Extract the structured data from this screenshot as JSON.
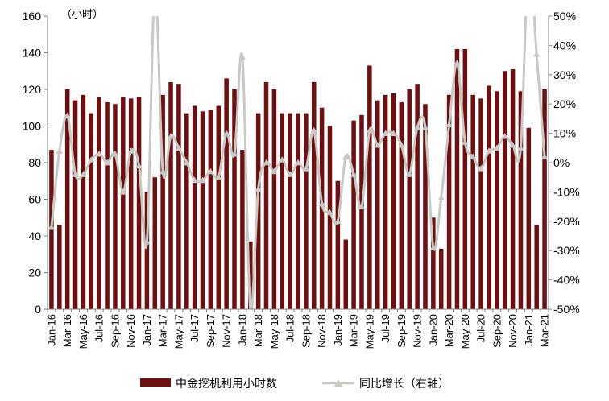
{
  "chart_data": {
    "type": "bar+line",
    "unit_label": "（小时）",
    "categories": [
      "Jan-16",
      "Feb-16",
      "Mar-16",
      "Apr-16",
      "May-16",
      "Jun-16",
      "Jul-16",
      "Aug-16",
      "Sep-16",
      "Oct-16",
      "Nov-16",
      "Dec-16",
      "Jan-17",
      "Feb-17",
      "Mar-17",
      "Apr-17",
      "May-17",
      "Jun-17",
      "Jul-17",
      "Aug-17",
      "Sep-17",
      "Oct-17",
      "Nov-17",
      "Dec-17",
      "Jan-18",
      "Feb-18",
      "Mar-18",
      "Apr-18",
      "May-18",
      "Jun-18",
      "Jul-18",
      "Aug-18",
      "Sep-18",
      "Oct-18",
      "Nov-18",
      "Dec-18",
      "Jan-19",
      "Feb-19",
      "Mar-19",
      "Apr-19",
      "May-19",
      "Jun-19",
      "Jul-19",
      "Aug-19",
      "Sep-19",
      "Oct-19",
      "Nov-19",
      "Dec-19",
      "Jan-20",
      "Feb-20",
      "Mar-20",
      "Apr-20",
      "May-20",
      "Jun-20",
      "Jul-20",
      "Aug-20",
      "Sep-20",
      "Oct-20",
      "Nov-20",
      "Dec-20",
      "Jan-21",
      "Feb-21",
      "Mar-21"
    ],
    "x_tick_labels": [
      "Jan-16",
      "Mar-16",
      "May-16",
      "Jul-16",
      "Sep-16",
      "Nov-16",
      "Jan-17",
      "Mar-17",
      "May-17",
      "Jul-17",
      "Sep-17",
      "Nov-17",
      "Jan-18",
      "Mar-18",
      "May-18",
      "Jul-18",
      "Sep-18",
      "Nov-18",
      "Jan-19",
      "Mar-19",
      "May-19",
      "Jul-19",
      "Sep-19",
      "Nov-19",
      "Jan-20",
      "Mar-20",
      "May-20",
      "Jul-20",
      "Sep-20",
      "Nov-20",
      "Jan-21",
      "Mar-21"
    ],
    "series": [
      {
        "name": "中金挖机利用小时数",
        "kind": "bar",
        "axis": "left",
        "color": "#6e1010",
        "values": [
          87,
          46,
          120,
          114,
          117,
          107,
          116,
          113,
          112,
          116,
          115,
          116,
          64,
          72,
          117,
          124,
          123,
          107,
          111,
          108,
          109,
          111,
          126,
          120,
          87,
          37,
          107,
          124,
          120,
          107,
          107,
          107,
          107,
          124,
          110,
          100,
          70,
          38,
          103,
          106,
          133,
          114,
          117,
          118,
          113,
          120,
          123,
          112,
          50,
          33,
          117,
          142,
          142,
          117,
          115,
          122,
          119,
          130,
          131,
          119,
          99,
          46,
          120
        ]
      },
      {
        "name": "同比增长（右轴）",
        "kind": "line",
        "axis": "right",
        "color": "#c8c8c4",
        "values": [
          -22,
          4,
          16,
          -4,
          -4,
          1,
          3,
          0,
          3,
          -10,
          4,
          -1,
          -27,
          60,
          -3,
          9,
          5,
          0,
          -6,
          -6,
          -3,
          -5,
          10,
          3,
          36,
          -50,
          -9,
          0,
          -3,
          1,
          -4,
          0,
          -2,
          11,
          -14,
          -17,
          -20,
          2,
          -4,
          -15,
          11,
          6,
          10,
          10,
          6,
          -4,
          12,
          12,
          -29,
          -12,
          13,
          34,
          7,
          2,
          -2,
          4,
          5,
          9,
          6,
          5,
          70,
          37,
          2
        ]
      }
    ],
    "y_left": {
      "min": 0,
      "max": 160,
      "ticks": [
        0,
        20,
        40,
        60,
        80,
        100,
        120,
        140,
        160
      ]
    },
    "y_right": {
      "min": -50,
      "max": 50,
      "ticks": [
        "-50%",
        "-40%",
        "-30%",
        "-20%",
        "-10%",
        "0%",
        "10%",
        "20%",
        "30%",
        "40%",
        "50%"
      ]
    },
    "legend": {
      "bar_label": "中金挖机利用小时数",
      "line_label": "同比增长（右轴）",
      "placement": "bottom-center"
    },
    "grid": false
  }
}
